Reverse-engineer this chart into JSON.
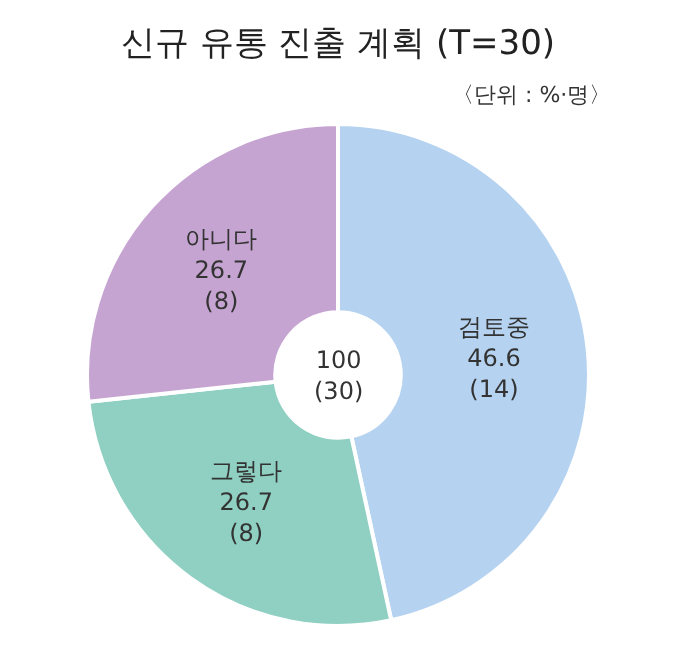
{
  "chart_data": {
    "type": "donut",
    "title": "신규 유통 진출 계획 (T=30)",
    "subtitle": "〈단위 : %·명〉",
    "categories": [
      "검토중",
      "그렇다",
      "아니다"
    ],
    "values": [
      46.6,
      26.7,
      26.7
    ],
    "colors": [
      "#b5d3f0",
      "#8fd0c2",
      "#c6a4d2"
    ],
    "value_labels": [
      "46.6\n(14)",
      "26.7\n(8)",
      "26.7\n(8)"
    ],
    "data_labels": true,
    "annotations": [
      "100\n(30)"
    ],
    "legend": false
  }
}
